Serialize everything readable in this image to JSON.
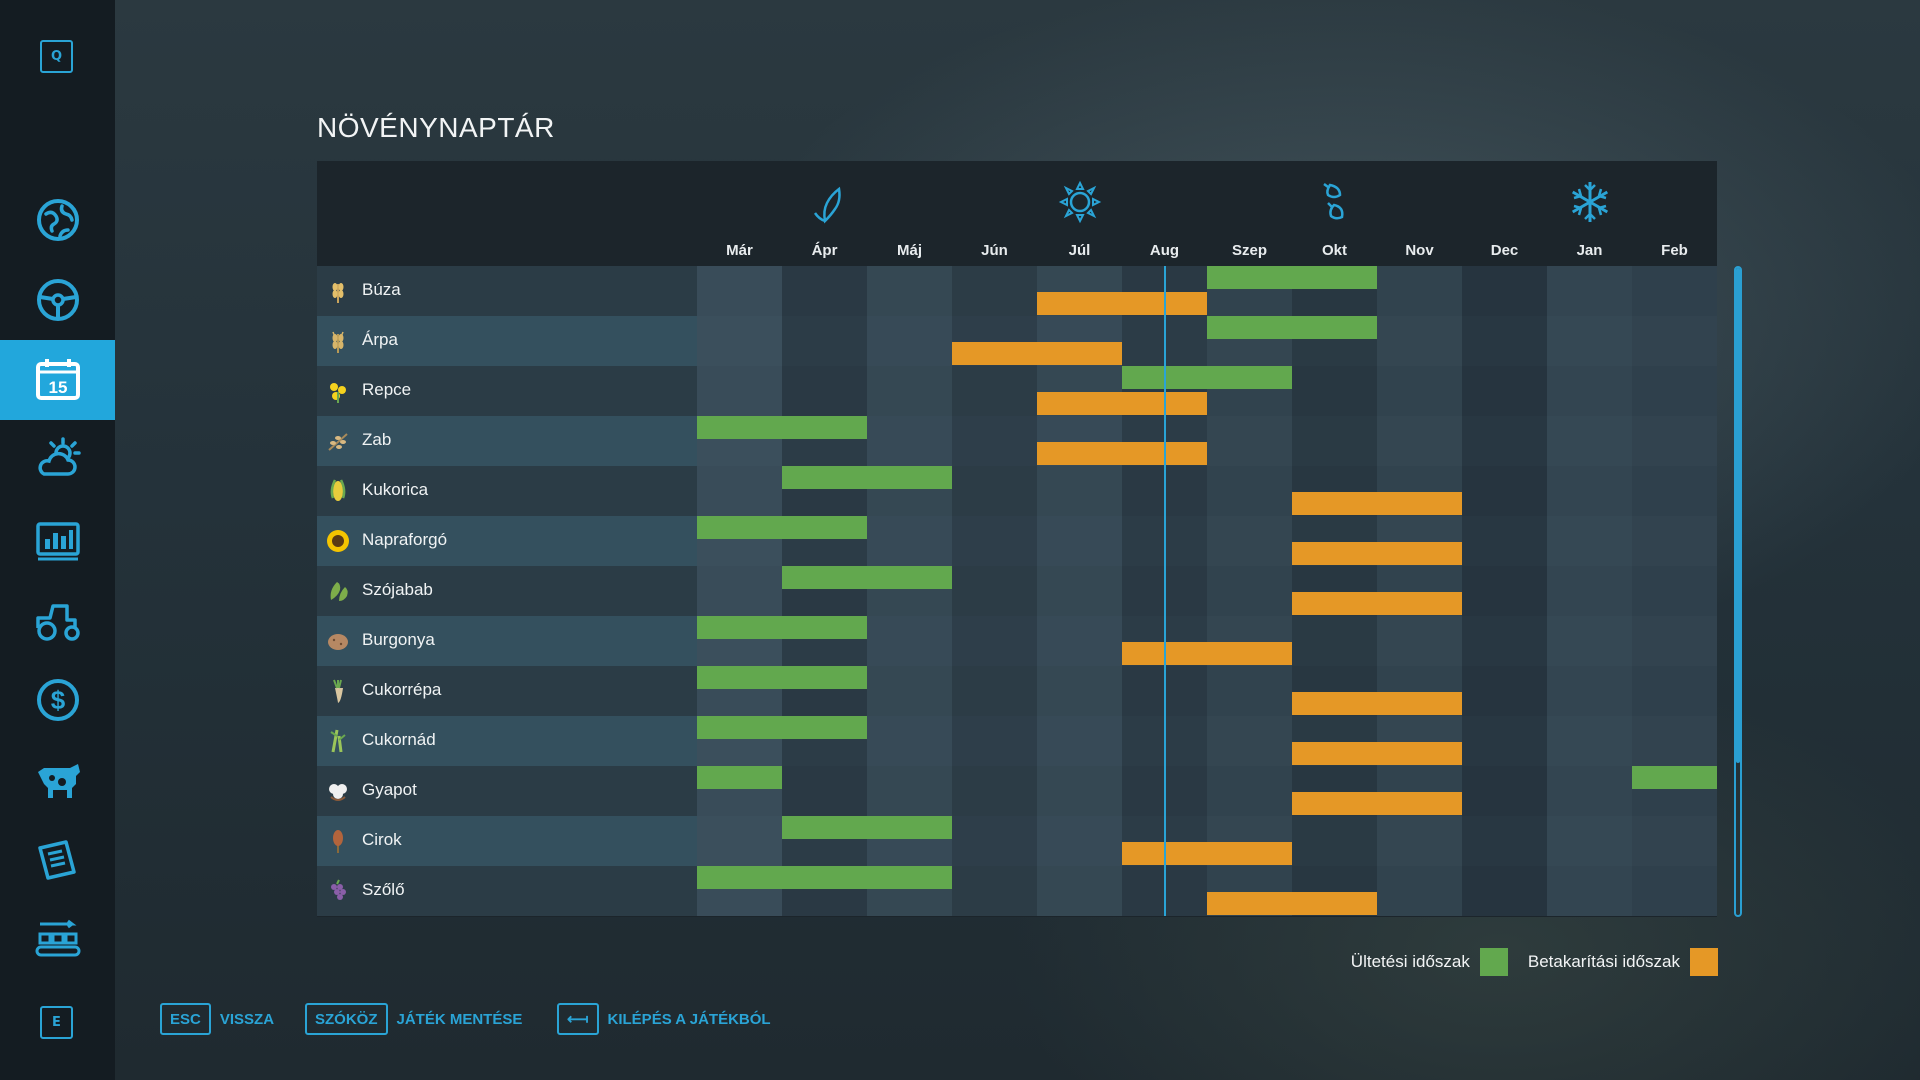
{
  "sidebar": {
    "top_key": "Q",
    "bottom_key": "E",
    "calendar_day": "15",
    "items": [
      {
        "icon": "globe-map-icon"
      },
      {
        "icon": "steering-wheel-icon"
      },
      {
        "icon": "calendar-icon",
        "active": true
      },
      {
        "icon": "weather-icon"
      },
      {
        "icon": "statistics-icon"
      },
      {
        "icon": "tractor-icon"
      },
      {
        "icon": "dollar-icon"
      },
      {
        "icon": "cow-icon"
      },
      {
        "icon": "contracts-icon"
      },
      {
        "icon": "production-chain-icon"
      }
    ]
  },
  "page_title": "NÖVÉNYNAPTÁR",
  "calendar": {
    "months": [
      "Már",
      "Ápr",
      "Máj",
      "Jún",
      "Júl",
      "Aug",
      "Szep",
      "Okt",
      "Nov",
      "Dec",
      "Jan",
      "Feb"
    ],
    "seasons": [
      {
        "name": "spring",
        "icon": "leaf-icon",
        "month_index": 1
      },
      {
        "name": "summer",
        "icon": "sun-icon",
        "month_index": 4
      },
      {
        "name": "autumn",
        "icon": "autumn-leaves-icon",
        "month_index": 7
      },
      {
        "name": "winter",
        "icon": "snowflake-icon",
        "month_index": 10
      }
    ],
    "current_month_position": 5.5,
    "crops": [
      {
        "name": "Búza",
        "icon": "wheat-icon",
        "plant": [
          [
            6,
            7
          ]
        ],
        "harvest": [
          [
            4,
            5
          ]
        ]
      },
      {
        "name": "Árpa",
        "icon": "barley-icon",
        "plant": [
          [
            6,
            7
          ]
        ],
        "harvest": [
          [
            3,
            4
          ]
        ]
      },
      {
        "name": "Repce",
        "icon": "canola-icon",
        "plant": [
          [
            5,
            6
          ]
        ],
        "harvest": [
          [
            4,
            5
          ]
        ]
      },
      {
        "name": "Zab",
        "icon": "oat-icon",
        "plant": [
          [
            0,
            1
          ]
        ],
        "harvest": [
          [
            4,
            5
          ]
        ]
      },
      {
        "name": "Kukorica",
        "icon": "corn-icon",
        "plant": [
          [
            1,
            2
          ]
        ],
        "harvest": [
          [
            7,
            8
          ]
        ]
      },
      {
        "name": "Napraforgó",
        "icon": "sunflower-icon",
        "plant": [
          [
            0,
            1
          ]
        ],
        "harvest": [
          [
            7,
            8
          ]
        ]
      },
      {
        "name": "Szójabab",
        "icon": "soybean-icon",
        "plant": [
          [
            1,
            2
          ]
        ],
        "harvest": [
          [
            7,
            8
          ]
        ]
      },
      {
        "name": "Burgonya",
        "icon": "potato-icon",
        "plant": [
          [
            0,
            1
          ]
        ],
        "harvest": [
          [
            5,
            6
          ]
        ]
      },
      {
        "name": "Cukorrépa",
        "icon": "sugarbeet-icon",
        "plant": [
          [
            0,
            1
          ]
        ],
        "harvest": [
          [
            7,
            8
          ]
        ]
      },
      {
        "name": "Cukornád",
        "icon": "sugarcane-icon",
        "plant": [
          [
            0,
            1
          ]
        ],
        "harvest": [
          [
            7,
            8
          ]
        ]
      },
      {
        "name": "Gyapot",
        "icon": "cotton-icon",
        "plant": [
          [
            0,
            0
          ],
          [
            11,
            11
          ]
        ],
        "harvest": [
          [
            7,
            8
          ]
        ]
      },
      {
        "name": "Cirok",
        "icon": "sorghum-icon",
        "plant": [
          [
            1,
            2
          ]
        ],
        "harvest": [
          [
            5,
            6
          ]
        ]
      },
      {
        "name": "Szőlő",
        "icon": "grape-icon",
        "plant": [
          [
            0,
            2
          ]
        ],
        "harvest": [
          [
            6,
            7
          ]
        ]
      }
    ]
  },
  "legend": {
    "planting_label": "Ültetési időszak",
    "harvest_label": "Betakarítási időszak",
    "planting_color": "#62a84e",
    "harvest_color": "#e59826"
  },
  "footer": {
    "back": {
      "key": "ESC",
      "label": "VISSZA"
    },
    "save": {
      "key": "SZÓKÖZ",
      "label": "JÁTÉK MENTÉSE"
    },
    "quit": {
      "key": "⟻",
      "label": "KILÉPÉS A JÁTÉKBÓL"
    }
  }
}
